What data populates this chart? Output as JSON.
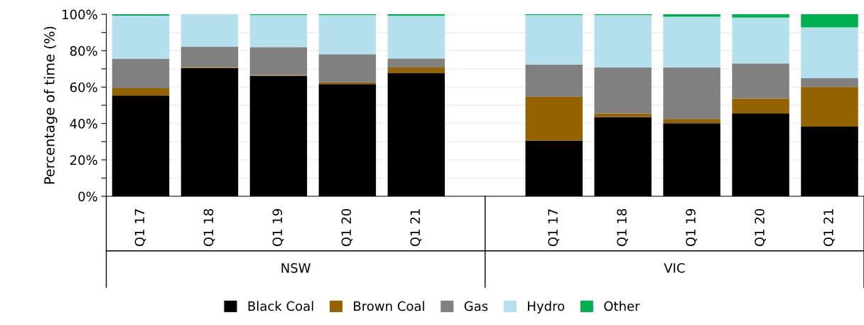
{
  "chart_data": {
    "type": "bar",
    "stacked": true,
    "ylabel": "Percentage of time (%)",
    "categories": [
      "Q1 17",
      "Q1 18",
      "Q1 19",
      "Q1 20",
      "Q1 21",
      null,
      "Q1 17",
      "Q1 18",
      "Q1 19",
      "Q1 20",
      "Q1 21"
    ],
    "series": [
      {
        "name": "Black Coal",
        "color": "#000000",
        "values": [
          55.4,
          70.4,
          66.1,
          61.7,
          67.6,
          null,
          30.6,
          43.5,
          40.2,
          45.6,
          38.3
        ]
      },
      {
        "name": "Brown Coal",
        "color": "#946300",
        "values": [
          4.0,
          0.4,
          0.5,
          0.9,
          3.1,
          null,
          24.2,
          2.0,
          2.3,
          8.1,
          21.8
        ]
      },
      {
        "name": "Gas",
        "color": "#808080",
        "values": [
          16.2,
          11.5,
          15.4,
          15.5,
          5.0,
          null,
          17.6,
          25.2,
          28.2,
          19.3,
          4.8
        ]
      },
      {
        "name": "Hydro",
        "color": "#b4e0ee",
        "values": [
          23.7,
          17.7,
          17.6,
          21.5,
          23.5,
          null,
          27.2,
          28.9,
          28.0,
          25.2,
          27.9
        ]
      },
      {
        "name": "Other",
        "color": "#00b050",
        "values": [
          0.7,
          0.0,
          0.4,
          0.4,
          0.8,
          null,
          0.4,
          0.4,
          1.3,
          1.8,
          7.2
        ]
      }
    ],
    "ylim": [
      0,
      100
    ],
    "yticks": [
      {
        "value": 0,
        "label": "0%"
      },
      {
        "value": 10,
        "label": null
      },
      {
        "value": 20,
        "label": "20%"
      },
      {
        "value": 30,
        "label": null
      },
      {
        "value": 40,
        "label": "40%"
      },
      {
        "value": 50,
        "label": null
      },
      {
        "value": 60,
        "label": "60%"
      },
      {
        "value": 70,
        "label": null
      },
      {
        "value": 80,
        "label": "80%"
      },
      {
        "value": 90,
        "label": null
      },
      {
        "value": 100,
        "label": "100%"
      }
    ],
    "grid": "y",
    "legend": "bottom",
    "annotations": [
      "NSW",
      "VIC"
    ]
  }
}
